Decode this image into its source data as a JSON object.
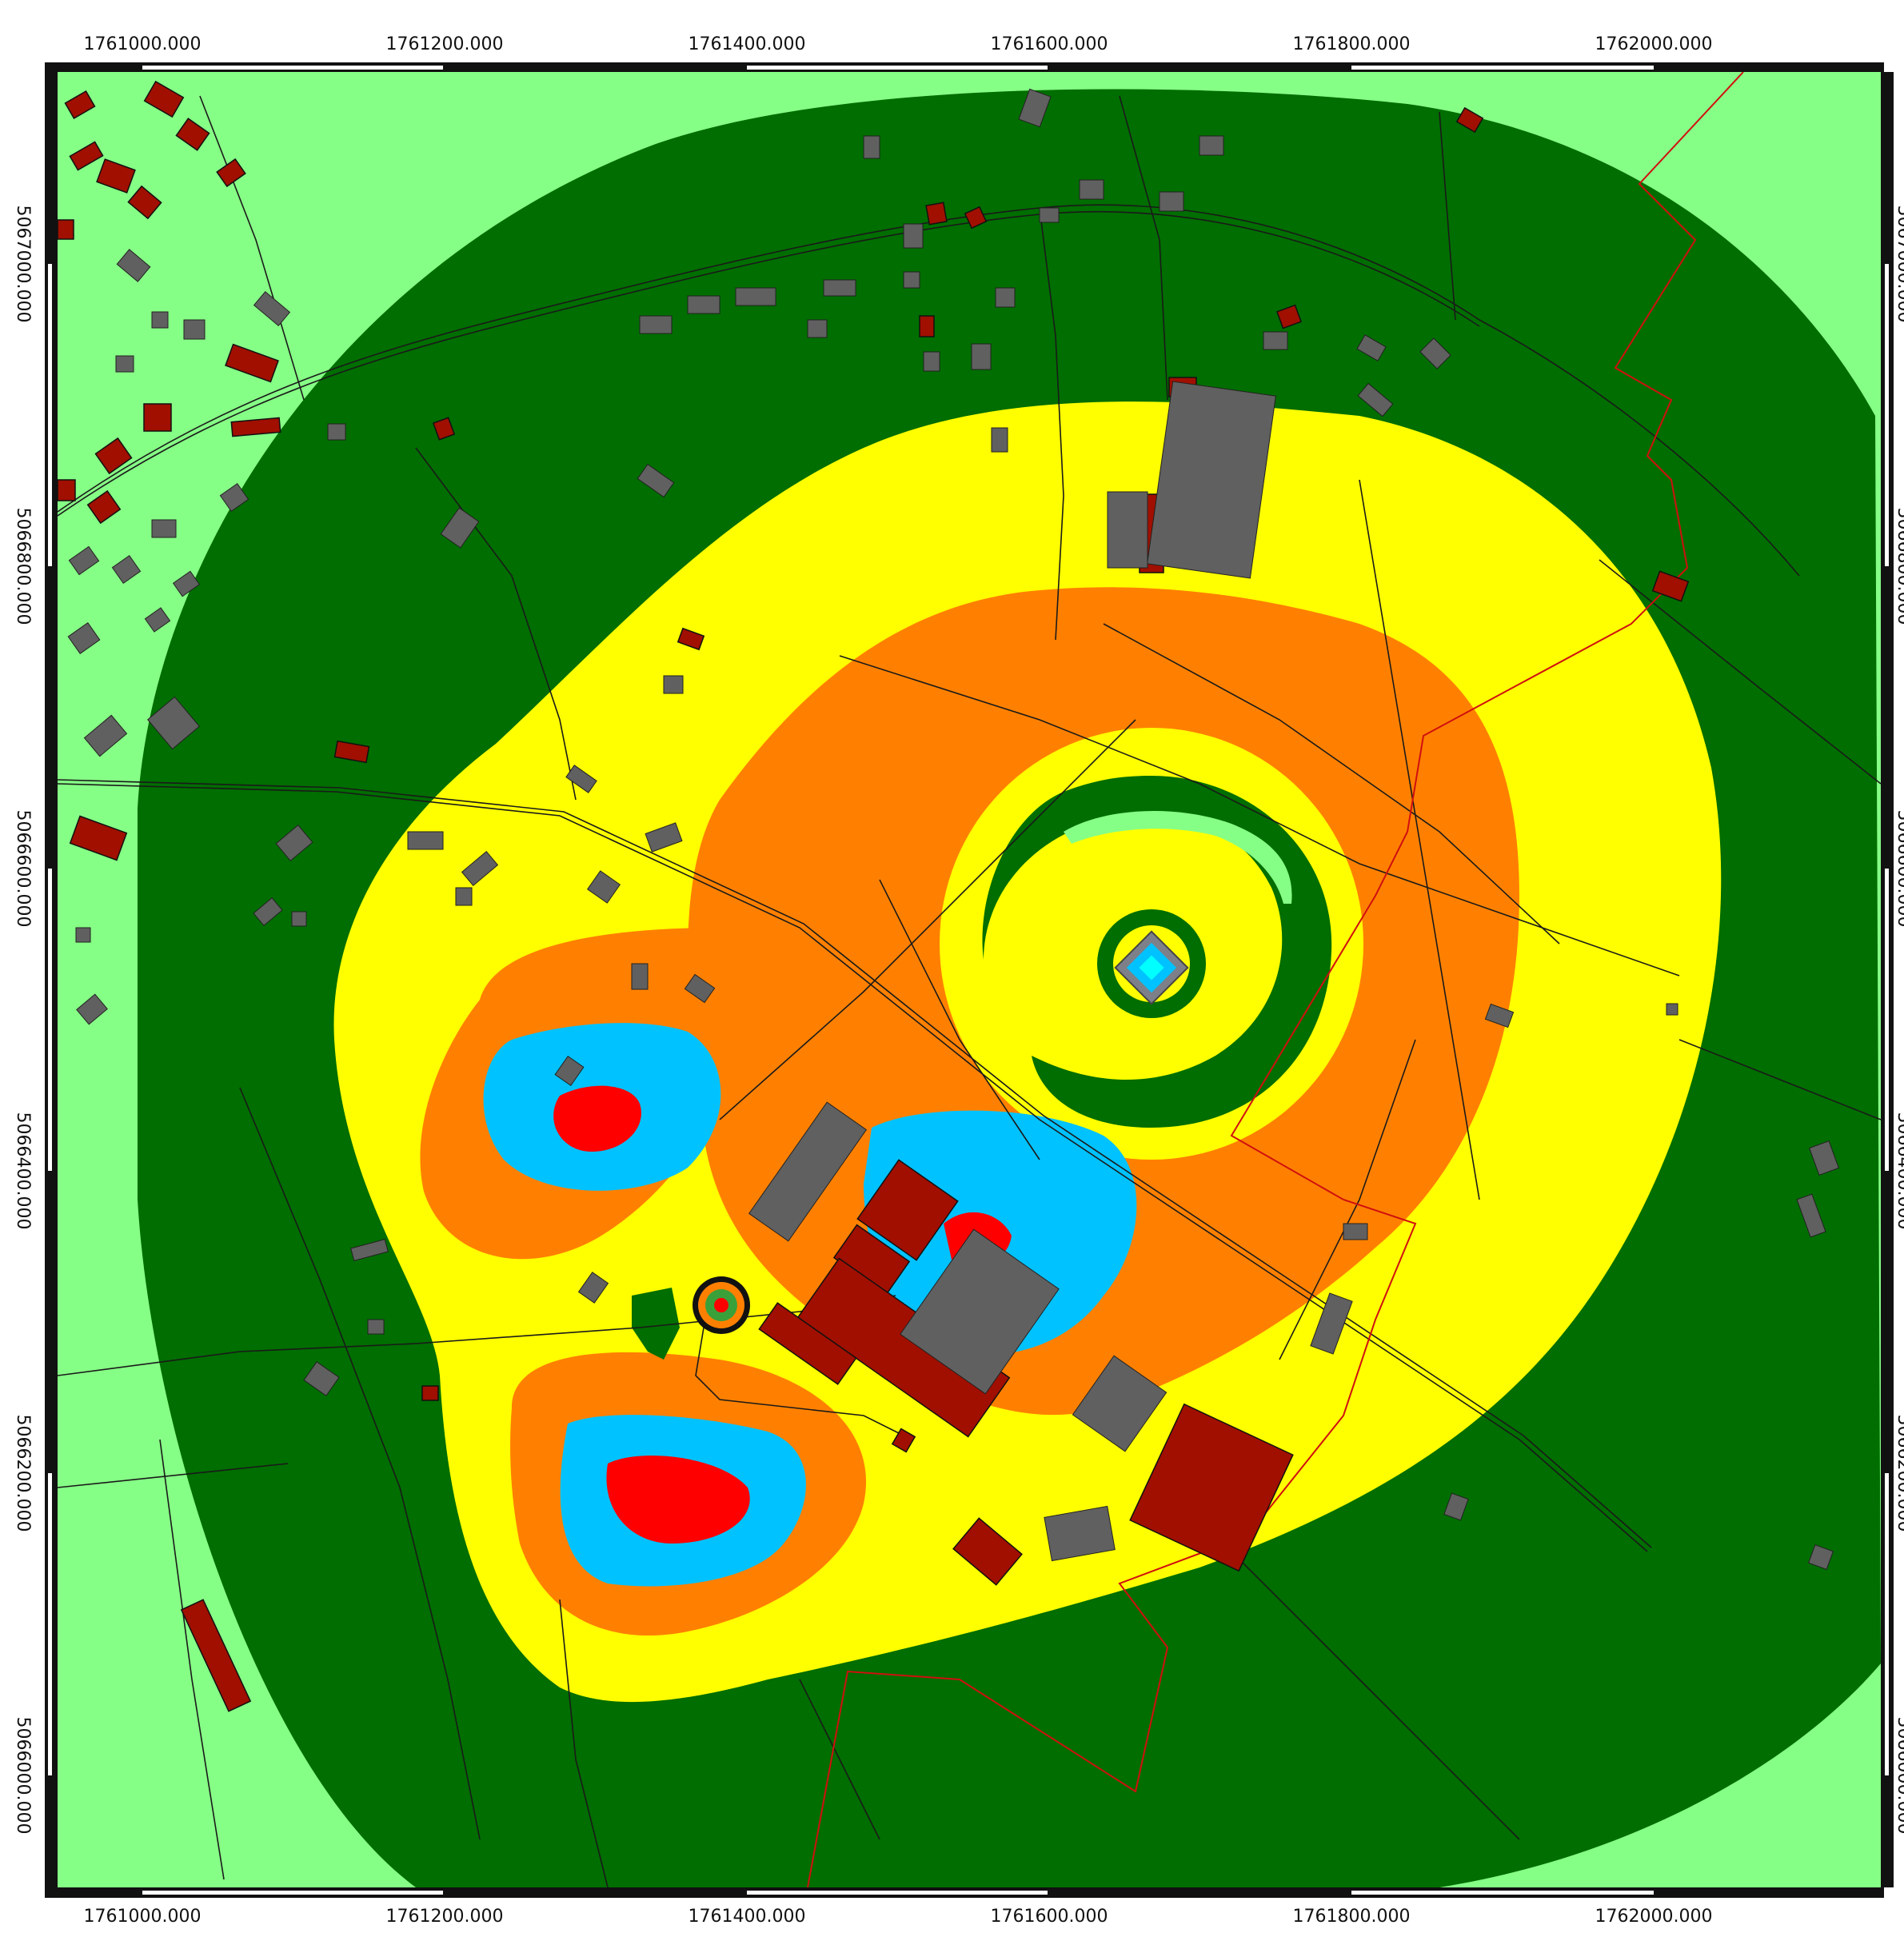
{
  "map": {
    "x_axis_labels": [
      "1761000.000",
      "1761200.000",
      "1761400.000",
      "1761600.000",
      "1761800.000",
      "1762000.000"
    ],
    "y_axis_labels": [
      "5067000.000",
      "5066800.000",
      "5066600.000",
      "5066400.000",
      "5066200.000",
      "5066000.000"
    ],
    "colors": {
      "frame": "#111111",
      "background_zone": "#86ff86",
      "zone_dark_green": "#006e00",
      "zone_yellow": "#ffff00",
      "zone_orange": "#ff8000",
      "zone_light_blue": "#00c2ff",
      "zone_red": "#ff0000",
      "building_residential": "#a00f00",
      "building_industrial": "#606060",
      "boundary_line": "#d01010",
      "road_line": "#1a1a1a"
    },
    "icons": {
      "emission_source_icon": "concentric circle source marker",
      "receptor_icon": "diamond receptor marker"
    }
  }
}
